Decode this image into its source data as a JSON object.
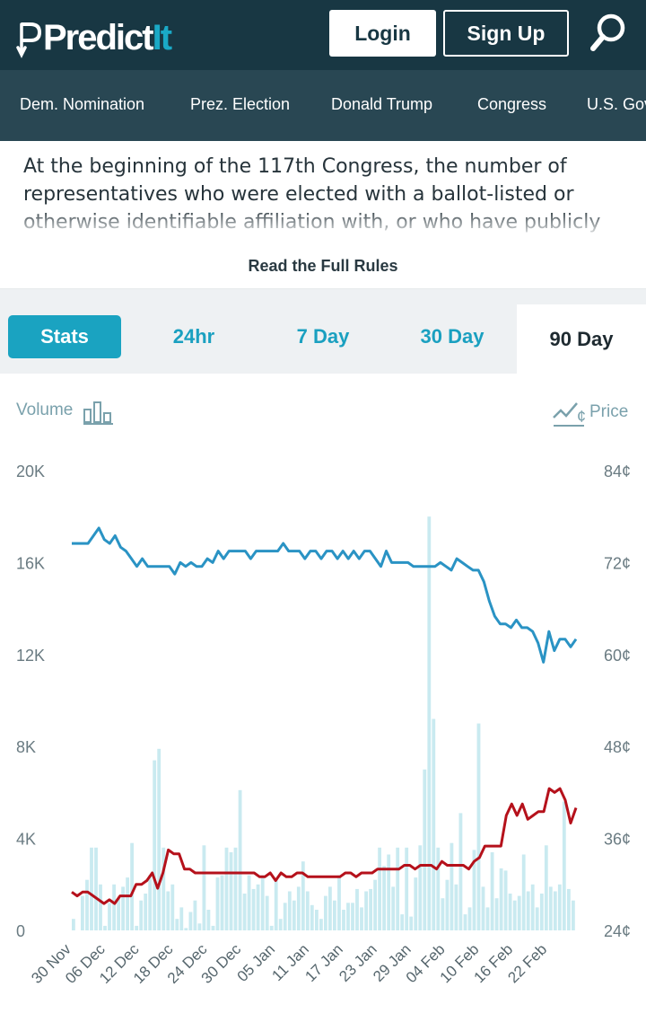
{
  "header": {
    "logo_main": "Predict",
    "logo_accent": "It",
    "login_label": "Login",
    "signup_label": "Sign Up",
    "search_icon": "search-icon"
  },
  "nav": {
    "items": [
      "Dem. Nomination",
      "Prez. Election",
      "Donald Trump",
      "Congress",
      "U.S. Gov"
    ]
  },
  "description": {
    "text": "At the beginning of the 117th Congress, the number of representatives who were elected with a ballot-listed or otherwise identifiable affiliation with, or who have publicly"
  },
  "rules_link": "Read the Full Rules",
  "tabs": {
    "stats": "Stats",
    "h24": "24hr",
    "d7": "7 Day",
    "d30": "30 Day",
    "d90": "90 Day"
  },
  "legend": {
    "volume": "Volume",
    "price": "Price"
  },
  "colors": {
    "header_bg": "#183743",
    "nav_bg": "#294753",
    "accent": "#1aa3c1",
    "line_blue": "#2a93c4",
    "line_red": "#b5111b",
    "volume_bar": "#c9eaf0"
  },
  "chart_data": {
    "type": "bar+line",
    "title": "",
    "xlabel": "",
    "left_axis": {
      "label": "Volume",
      "ticks": [
        "0",
        "4K",
        "8K",
        "12K",
        "16K",
        "20K"
      ],
      "range": [
        0,
        20000
      ]
    },
    "right_axis": {
      "label": "Price",
      "ticks": [
        "24¢",
        "36¢",
        "48¢",
        "60¢",
        "72¢",
        "84¢"
      ],
      "range": [
        24,
        84
      ]
    },
    "x_tick_labels": [
      "30 Nov",
      "06 Dec",
      "12 Dec",
      "18 Dec",
      "24 Dec",
      "30 Dec",
      "05 Jan",
      "11 Jan",
      "17 Jan",
      "23 Jan",
      "29 Jan",
      "04 Feb",
      "10 Feb",
      "16 Feb",
      "22 Feb"
    ],
    "start_label_index": 0,
    "day_count": 90,
    "volume": [
      500,
      0,
      1500,
      2200,
      3600,
      3600,
      2000,
      200,
      1200,
      2000,
      1400,
      1900,
      2300,
      3800,
      200,
      1300,
      1600,
      2400,
      7400,
      7900,
      3600,
      1700,
      2000,
      500,
      1000,
      100,
      800,
      1300,
      300,
      3700,
      900,
      200,
      2300,
      2400,
      3600,
      3400,
      3600,
      6100,
      1600,
      2400,
      1800,
      2000,
      2400,
      1500,
      200,
      2200,
      500,
      1200,
      1700,
      1300,
      1900,
      3000,
      1700,
      1100,
      900,
      500,
      1500,
      1900,
      1300,
      2400,
      900,
      1200,
      1200,
      1800,
      1000,
      1700,
      1800,
      2200,
      3600,
      2800,
      3300,
      1900,
      3600,
      700,
      3600,
      600,
      2300,
      3700,
      7000,
      18000,
      9200,
      3600,
      1400,
      2200,
      3800,
      2000,
      5100,
      700,
      1000,
      3500,
      9000,
      1900,
      1000,
      3400,
      1400,
      2700,
      2600,
      1600,
      1300,
      1500,
      3300,
      1700,
      2000,
      1000,
      1600,
      3700,
      1900,
      1700,
      2000,
      5600,
      1800,
      1300
    ],
    "series": [
      {
        "name": "",
        "values": [
          74.5,
          74.5,
          74.5,
          74.5,
          75.5,
          76.5,
          75.0,
          74.5,
          75.5,
          74.0,
          73.5,
          72.5,
          71.5,
          72.5,
          71.5,
          71.5,
          71.5,
          71.5,
          71.5,
          70.5,
          72.0,
          71.5,
          72.0,
          71.5,
          71.5,
          72.5,
          72.0,
          73.5,
          72.5,
          73.5,
          73.5,
          73.5,
          73.5,
          72.5,
          73.5,
          73.5,
          73.5,
          73.5,
          73.5,
          74.5,
          73.5,
          73.5,
          73.5,
          72.5,
          73.5,
          73.5,
          72.5,
          73.5,
          73.5,
          72.5,
          73.5,
          72.5,
          73.5,
          72.5,
          73.5,
          73.5,
          72.5,
          71.5,
          73.5,
          72.0,
          72.0,
          72.0,
          72.0,
          71.5,
          71.5,
          71.5,
          71.5,
          71.5,
          72.0,
          71.5,
          71.0,
          72.5,
          72.0,
          71.5,
          71.0,
          71.0,
          69.5,
          67.0,
          65.0,
          64.0,
          64.0,
          63.5,
          64.5,
          63.5,
          63.5,
          63.0,
          61.5,
          59.0,
          63.0,
          60.5,
          62.0,
          62.0,
          61.0,
          62.0
        ]
      },
      {
        "name": "",
        "values": [
          29.0,
          28.5,
          29.0,
          29.0,
          28.5,
          28.0,
          27.5,
          28.0,
          27.5,
          28.5,
          28.5,
          28.5,
          30.0,
          30.0,
          30.5,
          31.5,
          29.5,
          31.5,
          34.5,
          34.0,
          34.0,
          32.0,
          32.0,
          31.5,
          31.5,
          31.5,
          31.5,
          31.5,
          31.5,
          31.5,
          31.5,
          31.5,
          31.5,
          31.5,
          31.5,
          31.0,
          31.0,
          31.5,
          30.5,
          31.5,
          31.0,
          31.0,
          31.5,
          31.5,
          31.0,
          31.0,
          31.0,
          31.0,
          31.0,
          31.0,
          31.0,
          31.5,
          31.5,
          31.0,
          31.5,
          31.5,
          31.5,
          32.0,
          32.0,
          32.0,
          32.0,
          32.0,
          32.5,
          32.5,
          32.0,
          32.5,
          32.5,
          32.5,
          32.0,
          33.0,
          32.5,
          32.5,
          32.5,
          32.5,
          32.0,
          33.0,
          33.5,
          35.0,
          35.0,
          35.0,
          35.0,
          39.0,
          40.5,
          39.0,
          40.5,
          38.5,
          39.0,
          39.5,
          39.5,
          42.5,
          42.0,
          42.5,
          41.0,
          38.0,
          40.0
        ]
      }
    ],
    "grid": false,
    "legend": "top"
  }
}
